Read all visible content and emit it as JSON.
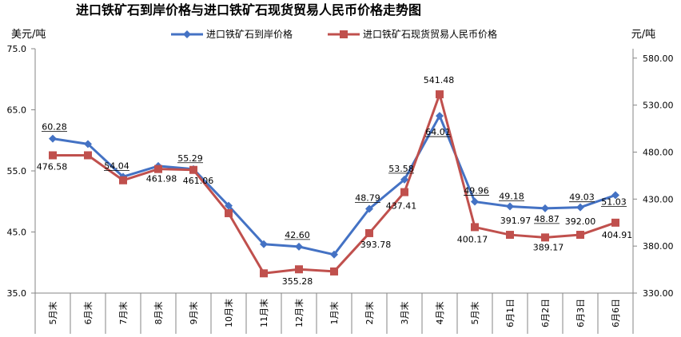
{
  "chart_data": {
    "type": "line",
    "title": "进口铁矿石到岸价格与进口铁矿石现货贸易人民币价格走势图",
    "ylabel": "美元/吨",
    "y2label": "元/吨",
    "categories": [
      "5月末",
      "6月末",
      "7月末",
      "8月末",
      "9月末",
      "10月末",
      "11月末",
      "12月末",
      "1月末",
      "2月末",
      "3月末",
      "4月末",
      "5月末",
      "6月1日",
      "6月2日",
      "6月3日",
      "6月6日"
    ],
    "ylim": [
      35.0,
      75.0
    ],
    "yticks": [
      "35.0",
      "45.0",
      "55.0",
      "65.0",
      "75.0"
    ],
    "y2lim": [
      330.0,
      590.0
    ],
    "y2ticks": [
      "330.00",
      "380.00",
      "430.00",
      "480.00",
      "530.00",
      "580.00"
    ],
    "grid": false,
    "legend_position": "top",
    "series": [
      {
        "name": "进口铁矿石到岸价格",
        "axis": "left",
        "color": "#4472C4",
        "marker": "diamond",
        "values": [
          60.28,
          59.4,
          54.04,
          55.8,
          55.29,
          49.3,
          43.0,
          42.6,
          41.3,
          48.79,
          53.58,
          64.01,
          49.96,
          49.18,
          48.87,
          49.03,
          51.03
        ],
        "labels": [
          "60.28",
          "",
          "54.04",
          "",
          "55.29",
          "",
          "",
          "42.60",
          "",
          "48.79",
          "53.58",
          "64.01",
          "49.96",
          "49.18",
          "48.87",
          "49.03",
          "51.03"
        ]
      },
      {
        "name": "进口铁矿石现货贸易人民币价格",
        "axis": "right",
        "color": "#C0504D",
        "marker": "square",
        "values": [
          476.58,
          476.6,
          450.0,
          461.98,
          461.06,
          415.0,
          351.0,
          355.28,
          353.0,
          393.78,
          437.41,
          541.48,
          400.17,
          391.97,
          389.17,
          392.0,
          404.91
        ],
        "labels": [
          "476.58",
          "",
          "",
          "461.98",
          "461.06",
          "",
          "",
          "355.28",
          "",
          "393.78",
          "437.41",
          "541.48",
          "400.17",
          "391.97",
          "389.17",
          "392.00",
          "404.91"
        ]
      }
    ]
  }
}
